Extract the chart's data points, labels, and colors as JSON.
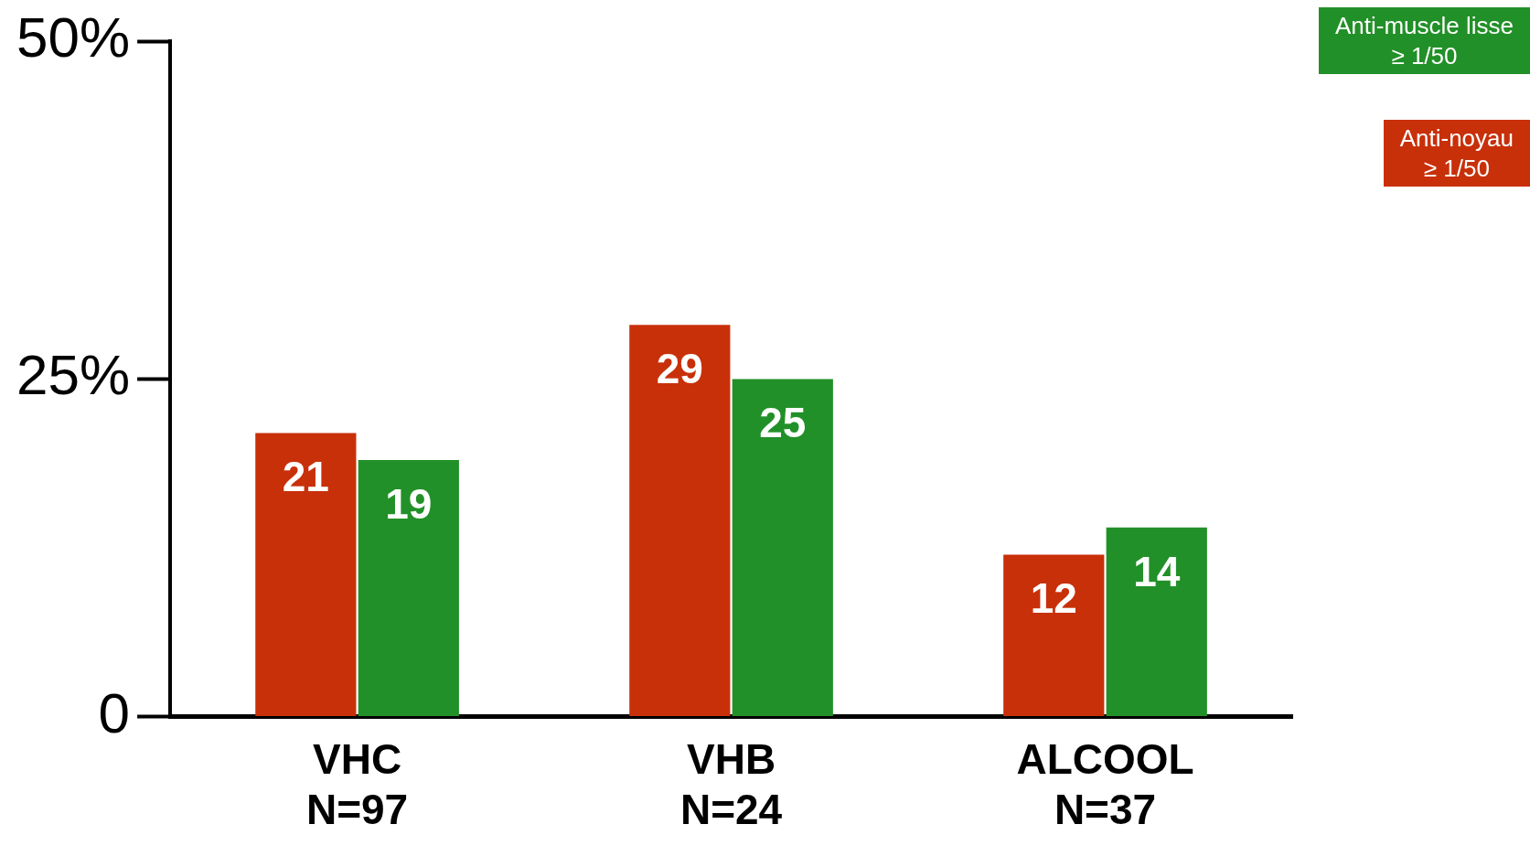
{
  "chart_data": {
    "type": "bar",
    "categories": [
      "VHC\nN=97",
      "VHB\nN=24",
      "ALCOOL\nN=37"
    ],
    "series": [
      {
        "name": "Anti-noyau\n≥ 1/50",
        "color": "#c8300a",
        "values": [
          21,
          29,
          12
        ]
      },
      {
        "name": "Anti-muscle lisse\n≥ 1/50",
        "color": "#229028",
        "values": [
          19,
          25,
          14
        ]
      }
    ],
    "ylim": [
      0,
      50
    ],
    "yticks": [
      0,
      {
        "value": 25,
        "label": "25%"
      },
      {
        "value": 50,
        "label": "50%"
      }
    ],
    "grid": false,
    "legend": "top right",
    "data_labels": true
  }
}
